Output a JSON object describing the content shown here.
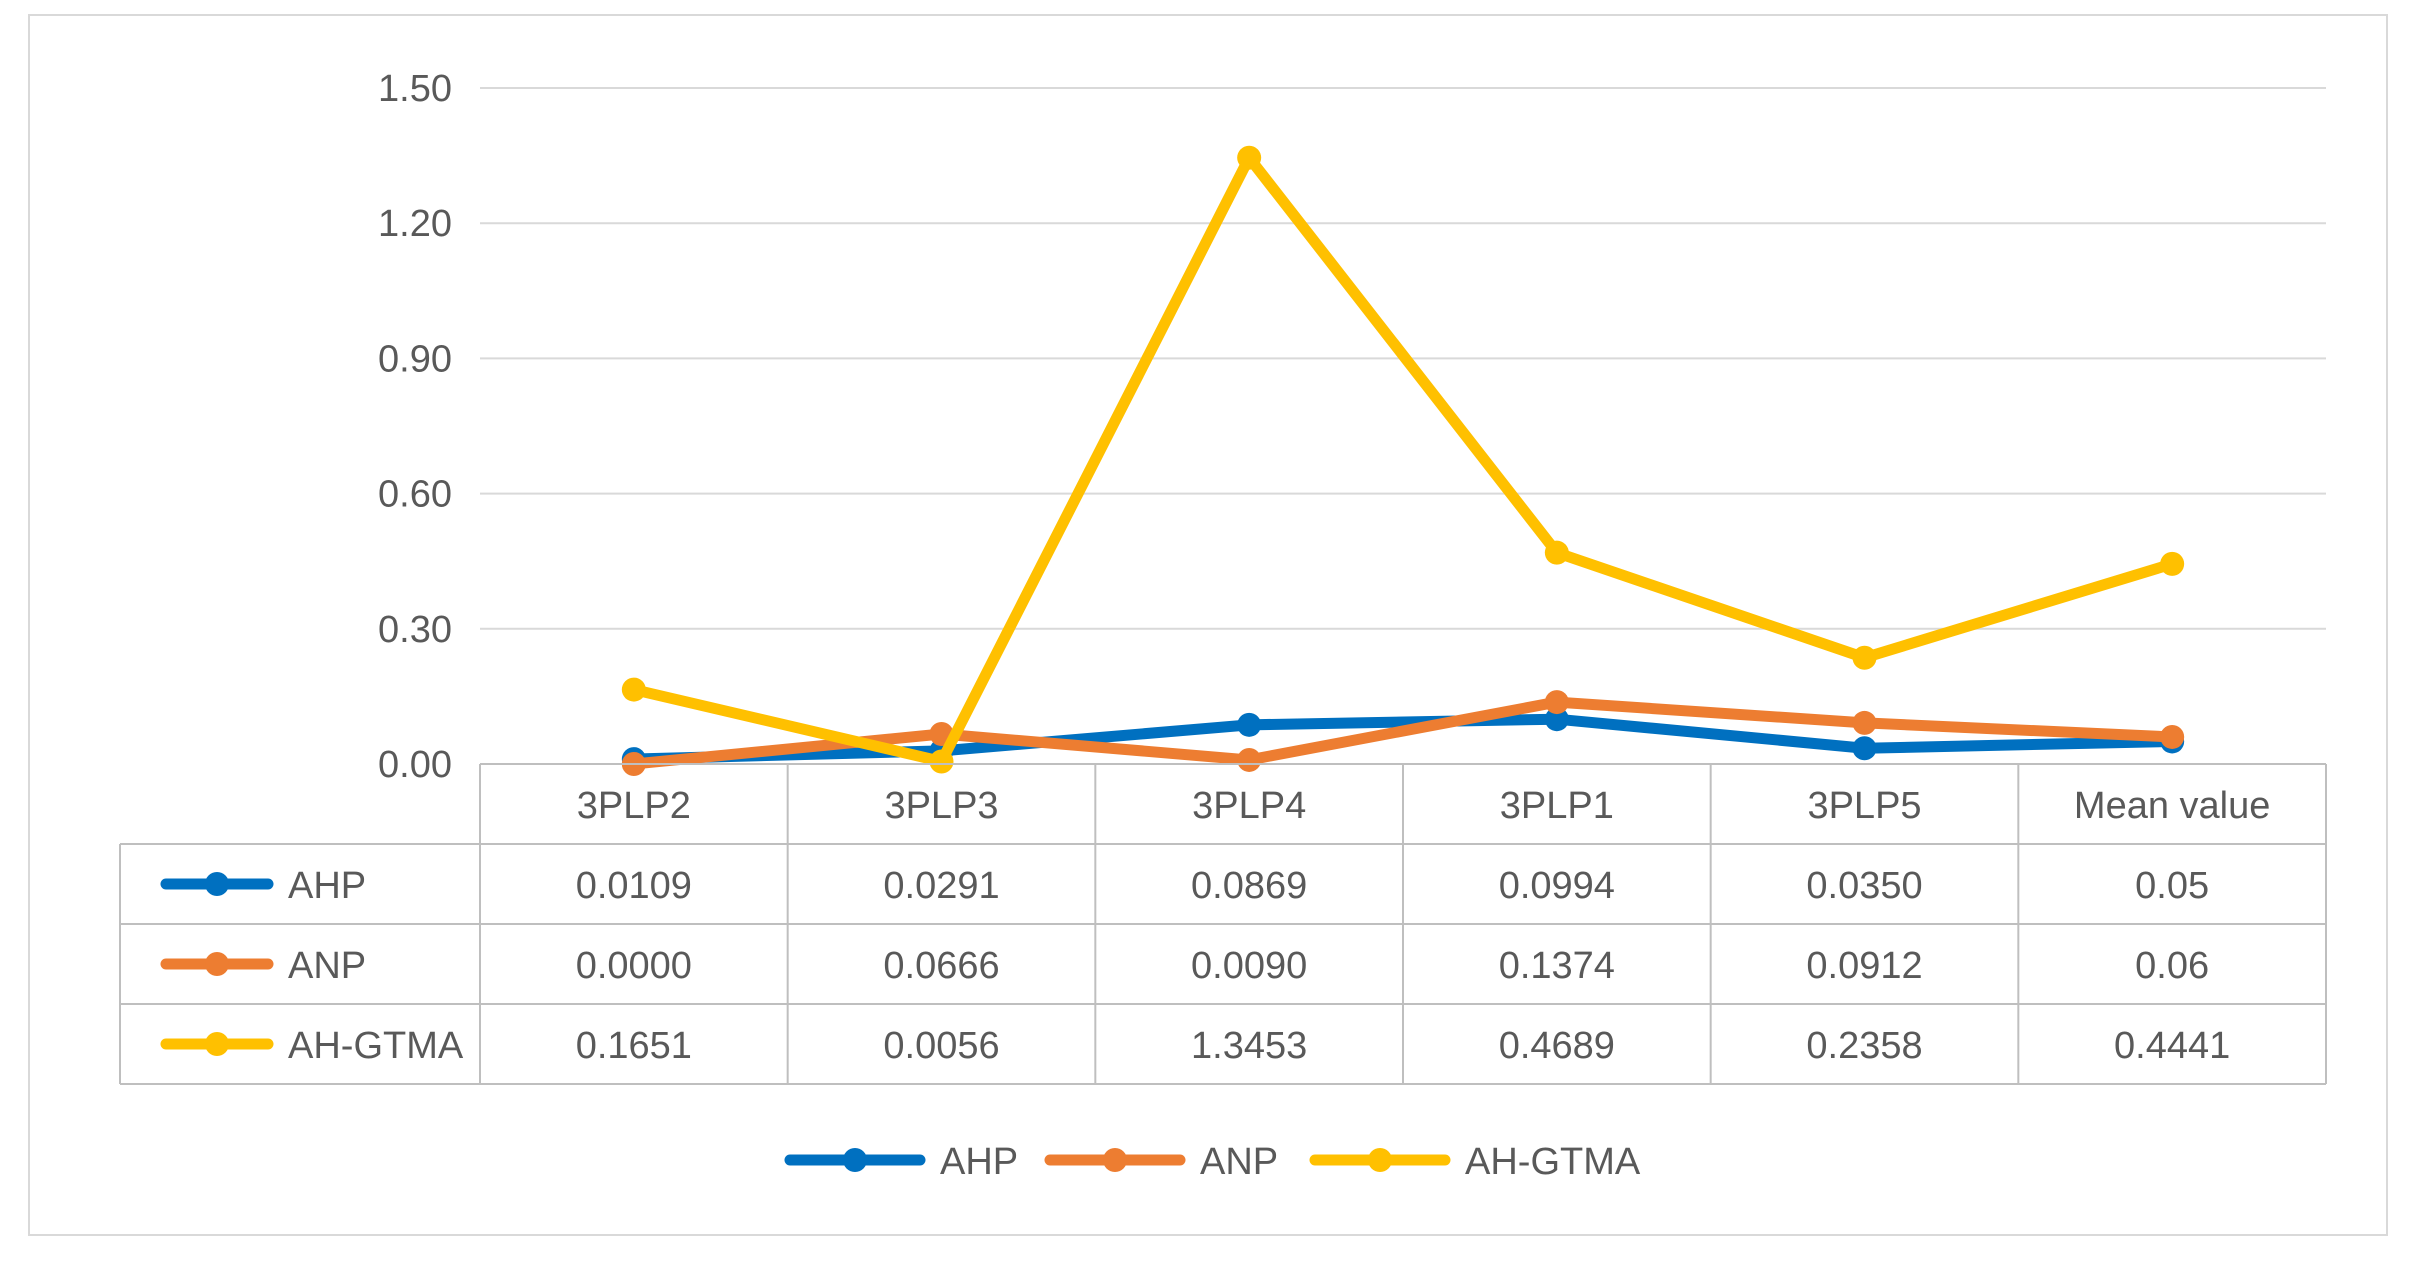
{
  "chart_data": {
    "type": "line",
    "title": "",
    "xlabel": "",
    "ylabel": "",
    "categories": [
      "3PLP2",
      "3PLP3",
      "3PLP4",
      "3PLP1",
      "3PLP5",
      "Mean value"
    ],
    "ylim": [
      0,
      1.5
    ],
    "yticks": [
      0,
      0.3,
      0.6,
      0.9,
      1.2,
      1.5
    ],
    "ytick_labels": [
      "0.00",
      "0.30",
      "0.60",
      "0.90",
      "1.20",
      "1.50"
    ],
    "grid": true,
    "legend_position": "bottom",
    "series": [
      {
        "name": "AHP",
        "color": "#0070c0",
        "values": [
          0.0109,
          0.0291,
          0.0869,
          0.0994,
          0.035,
          0.05
        ],
        "value_labels": [
          "0.0109",
          "0.0291",
          "0.0869",
          "0.0994",
          "0.0350",
          "0.05"
        ]
      },
      {
        "name": "ANP",
        "color": "#ed7d31",
        "values": [
          0.0,
          0.0666,
          0.009,
          0.1374,
          0.0912,
          0.06
        ],
        "value_labels": [
          "0.0000",
          "0.0666",
          "0.0090",
          "0.1374",
          "0.0912",
          "0.06"
        ]
      },
      {
        "name": "AH-GTMA",
        "color": "#ffc000",
        "values": [
          0.1651,
          0.0056,
          1.3453,
          0.4689,
          0.2358,
          0.4441
        ],
        "value_labels": [
          "0.1651",
          "0.0056",
          "1.3453",
          "0.4689",
          "0.2358",
          "0.4441"
        ]
      }
    ]
  }
}
